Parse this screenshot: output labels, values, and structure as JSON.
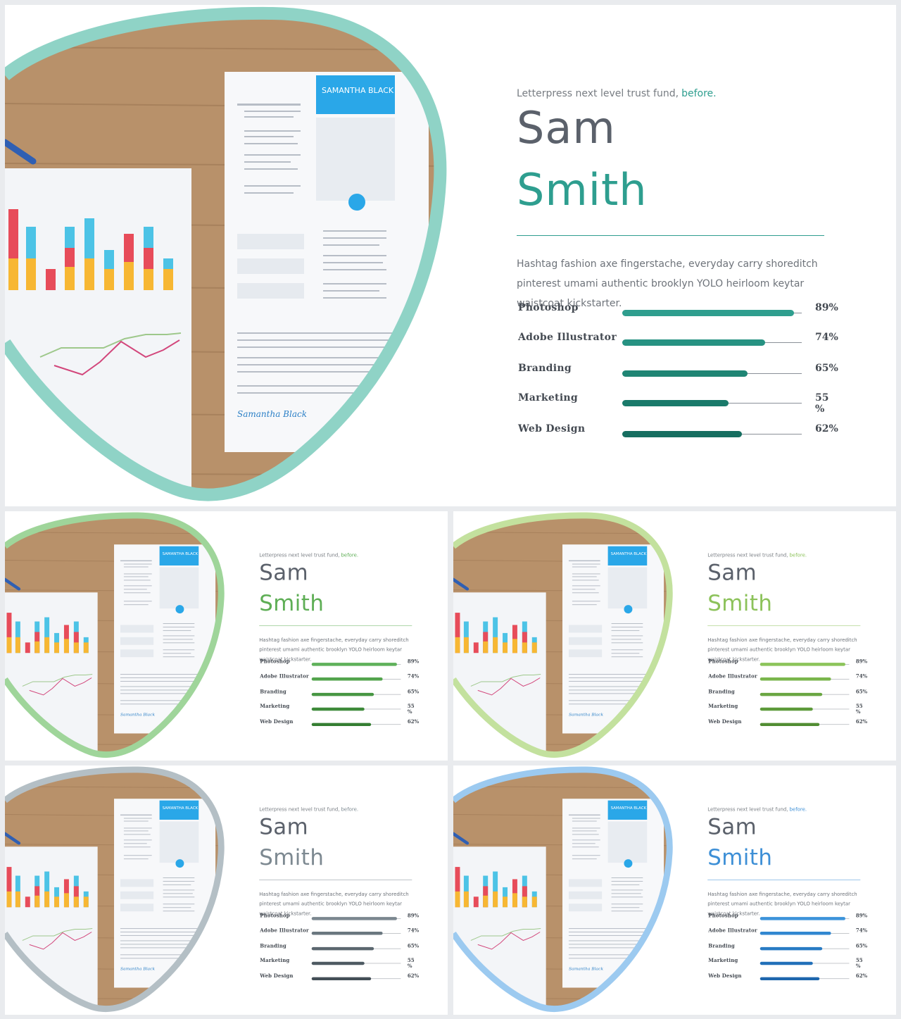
{
  "slides": [
    {
      "accent": "#2e9e8f",
      "frame": "#8fd3c6",
      "tagline": "Letterpress next level trust fund,",
      "tagline_accent": "before.",
      "first_name": "Sam",
      "last_name": "Smith",
      "description": "Hashtag fashion axe fingerstache, everyday carry shoreditch pinterest umami authentic brooklyn YOLO heirloom keytar waistcoat kickstarter.",
      "bar_colors": [
        "#2f9e8e",
        "#279282",
        "#1f8574",
        "#1a7a6a",
        "#166e60"
      ],
      "skills": [
        {
          "name": "Photoshop",
          "percent": 89,
          "label": "89%"
        },
        {
          "name": "Adobe Illustrator",
          "percent": 74,
          "label": "74%"
        },
        {
          "name": "Branding",
          "percent": 65,
          "label": "65%"
        },
        {
          "name": "Marketing",
          "percent": 55,
          "label": "55 %"
        },
        {
          "name": "Web Design",
          "percent": 62,
          "label": "62%"
        }
      ],
      "photo": {
        "resume_name": "SAMANTHA BLACK",
        "signature": "Samantha Black"
      }
    },
    {
      "accent": "#5eae55",
      "frame": "#9fd59a",
      "tagline": "Letterpress next level trust fund,",
      "tagline_accent": "before.",
      "first_name": "Sam",
      "last_name": "Smith",
      "description": "Hashtag fashion axe fingerstache, everyday carry shoreditch pinterest umami authentic brooklyn YOLO heirloom keytar waistcoat kickstarter.",
      "bar_colors": [
        "#5fb15a",
        "#53a44d",
        "#479643",
        "#3e8a3a",
        "#357e32"
      ],
      "skills": [
        {
          "name": "Photoshop",
          "percent": 89,
          "label": "89%"
        },
        {
          "name": "Adobe Illustrator",
          "percent": 74,
          "label": "74%"
        },
        {
          "name": "Branding",
          "percent": 65,
          "label": "65%"
        },
        {
          "name": "Marketing",
          "percent": 55,
          "label": "55 %"
        },
        {
          "name": "Web Design",
          "percent": 62,
          "label": "62%"
        }
      ],
      "photo": {
        "resume_name": "SAMANTHA BLACK",
        "signature": "Samantha Black"
      }
    },
    {
      "accent": "#8cc25a",
      "frame": "#c3e19e",
      "tagline": "Letterpress next level trust fund,",
      "tagline_accent": "before.",
      "first_name": "Sam",
      "last_name": "Smith",
      "description": "Hashtag fashion axe fingerstache, everyday carry shoreditch pinterest umami authentic brooklyn YOLO heirloom keytar waistcoat kickstarter.",
      "bar_colors": [
        "#8cc45a",
        "#7ab64c",
        "#6aa642",
        "#5d9a3a",
        "#518d33"
      ],
      "skills": [
        {
          "name": "Photoshop",
          "percent": 89,
          "label": "89%"
        },
        {
          "name": "Adobe Illustrator",
          "percent": 74,
          "label": "74%"
        },
        {
          "name": "Branding",
          "percent": 65,
          "label": "65%"
        },
        {
          "name": "Marketing",
          "percent": 55,
          "label": "55 %"
        },
        {
          "name": "Web Design",
          "percent": 62,
          "label": "62%"
        }
      ],
      "photo": {
        "resume_name": "SAMANTHA BLACK",
        "signature": "Samantha Black"
      }
    },
    {
      "accent": "#7d8991",
      "frame": "#b4bfc5",
      "tagline": "Letterpress next level trust fund,",
      "tagline_accent": "before.",
      "first_name": "Sam",
      "last_name": "Smith",
      "description": "Hashtag fashion axe fingerstache, everyday carry shoreditch pinterest umami authentic brooklyn YOLO heirloom keytar waistcoat kickstarter.",
      "bar_colors": [
        "#7b878f",
        "#6a777f",
        "#5b676f",
        "#4e5a62",
        "#434e56"
      ],
      "skills": [
        {
          "name": "Photoshop",
          "percent": 89,
          "label": "89%"
        },
        {
          "name": "Adobe Illustrator",
          "percent": 74,
          "label": "74%"
        },
        {
          "name": "Branding",
          "percent": 65,
          "label": "65%"
        },
        {
          "name": "Marketing",
          "percent": 55,
          "label": "55 %"
        },
        {
          "name": "Web Design",
          "percent": 62,
          "label": "62%"
        }
      ],
      "photo": {
        "resume_name": "SAMANTHA BLACK",
        "signature": "Samantha Black"
      }
    },
    {
      "accent": "#3d8fd6",
      "frame": "#9ccaf0",
      "tagline": "Letterpress next level trust fund,",
      "tagline_accent": "before.",
      "first_name": "Sam",
      "last_name": "Smith",
      "description": "Hashtag fashion axe fingerstache, everyday carry shoreditch pinterest umami authentic brooklyn YOLO heirloom keytar waistcoat kickstarter.",
      "bar_colors": [
        "#3c93da",
        "#3187d0",
        "#297bc4",
        "#2270b9",
        "#1d66ad"
      ],
      "skills": [
        {
          "name": "Photoshop",
          "percent": 89,
          "label": "89%"
        },
        {
          "name": "Adobe Illustrator",
          "percent": 74,
          "label": "74%"
        },
        {
          "name": "Branding",
          "percent": 65,
          "label": "65%"
        },
        {
          "name": "Marketing",
          "percent": 55,
          "label": "55 %"
        },
        {
          "name": "Web Design",
          "percent": 62,
          "label": "62%"
        }
      ],
      "photo": {
        "resume_name": "SAMANTHA BLACK",
        "signature": "Samantha Black"
      }
    }
  ]
}
